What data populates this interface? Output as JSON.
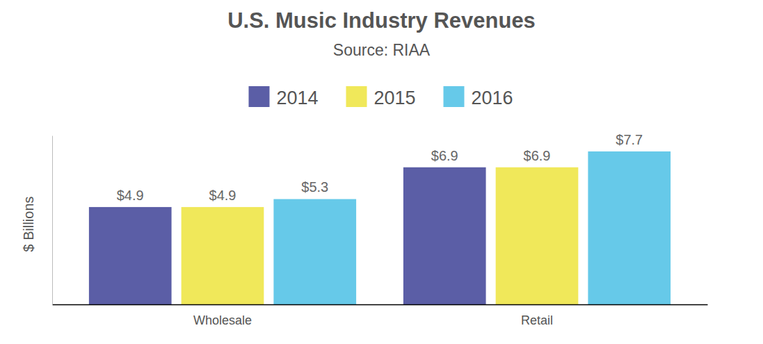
{
  "chart_data": {
    "type": "bar",
    "title": "U.S. Music Industry Revenues",
    "subtitle": "Source: RIAA",
    "y_label": "$ Billions",
    "categories": [
      "Wholesale",
      "Retail"
    ],
    "series": [
      {
        "name": "2014",
        "color": "#5b5ea6",
        "values": [
          4.9,
          6.9
        ],
        "value_labels": [
          "$4.9",
          "$6.9"
        ]
      },
      {
        "name": "2015",
        "color": "#f0e85a",
        "values": [
          4.9,
          6.9
        ],
        "value_labels": [
          "$4.9",
          "$6.9"
        ]
      },
      {
        "name": "2016",
        "color": "#66c9e9",
        "values": [
          5.3,
          7.7
        ],
        "value_labels": [
          "$5.3",
          "$7.7"
        ]
      }
    ],
    "ylim": [
      0,
      8.5
    ],
    "yticks": [],
    "grid": false,
    "legend": "top",
    "data_labels": true,
    "tick_labels": "x"
  }
}
